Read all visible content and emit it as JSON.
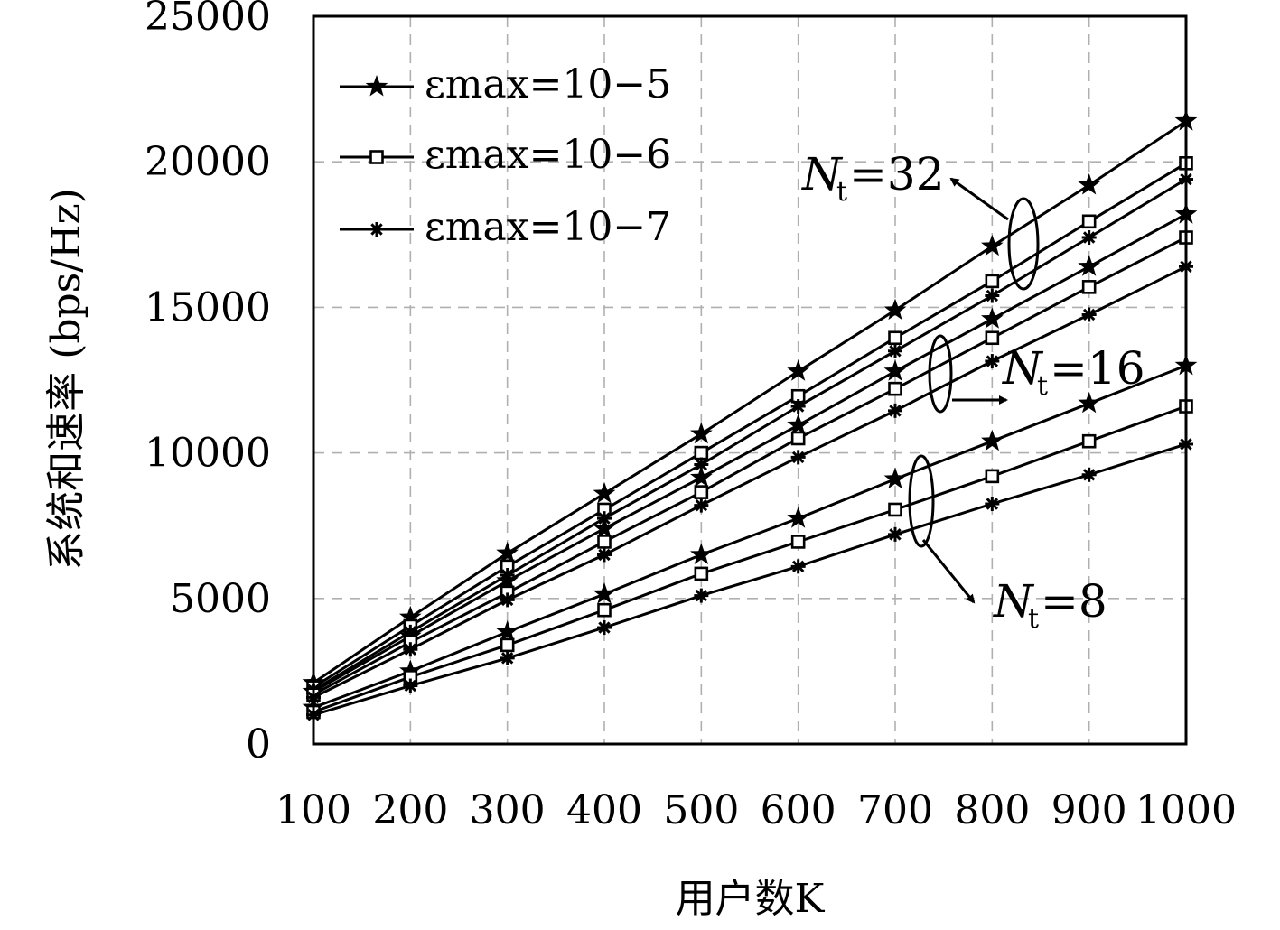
{
  "chart_data": {
    "type": "line",
    "xlabel": "用户数K",
    "ylabel": "系统和速率 (bps/Hz)",
    "x": [
      100,
      200,
      300,
      400,
      500,
      600,
      700,
      800,
      900,
      1000
    ],
    "xlim": [
      100,
      1000
    ],
    "ylim": [
      0,
      25000
    ],
    "xticks": [
      "100",
      "200",
      "300",
      "400",
      "500",
      "600",
      "700",
      "800",
      "900",
      "1000"
    ],
    "yticks": [
      "0",
      "5000",
      "10000",
      "15000",
      "20000",
      "25000"
    ],
    "grid": true,
    "legend_position": "top-left",
    "legend": [
      {
        "marker": "star",
        "label": "εmax=10−5"
      },
      {
        "marker": "square",
        "label": "εmax=10−6"
      },
      {
        "marker": "asterisk",
        "label": "εmax=10−7"
      }
    ],
    "series": [
      {
        "group": "Nt=32",
        "marker": "star",
        "values": [
          2100,
          4350,
          6550,
          8600,
          10650,
          12800,
          14900,
          17100,
          19200,
          21400
        ]
      },
      {
        "group": "Nt=32",
        "marker": "square",
        "values": [
          1950,
          4050,
          6100,
          8050,
          10000,
          11950,
          13950,
          15900,
          17950,
          19950
        ]
      },
      {
        "group": "Nt=32",
        "marker": "asterisk",
        "values": [
          1850,
          3850,
          5800,
          7750,
          9600,
          11600,
          13500,
          15400,
          17400,
          19400
        ]
      },
      {
        "group": "Nt=16",
        "marker": "star",
        "values": [
          1800,
          3700,
          5600,
          7400,
          9150,
          10950,
          12800,
          14600,
          16400,
          18200
        ]
      },
      {
        "group": "Nt=16",
        "marker": "square",
        "values": [
          1700,
          3500,
          5200,
          6950,
          8650,
          10500,
          12200,
          13950,
          15700,
          17400
        ]
      },
      {
        "group": "Nt=16",
        "marker": "asterisk",
        "values": [
          1600,
          3250,
          4950,
          6500,
          8200,
          9850,
          11450,
          13150,
          14750,
          16400
        ]
      },
      {
        "group": "Nt=8",
        "marker": "star",
        "values": [
          1250,
          2500,
          3850,
          5150,
          6500,
          7750,
          9100,
          10400,
          11700,
          13000
        ]
      },
      {
        "group": "Nt=8",
        "marker": "square",
        "values": [
          1100,
          2300,
          3400,
          4600,
          5850,
          6950,
          8050,
          9200,
          10400,
          11600
        ]
      },
      {
        "group": "Nt=8",
        "marker": "asterisk",
        "values": [
          1000,
          2000,
          2950,
          4000,
          5100,
          6100,
          7200,
          8250,
          9250,
          10300
        ]
      }
    ],
    "annotations": [
      {
        "label": "Nt=32",
        "text": "=32"
      },
      {
        "label": "Nt=16",
        "text": "=16"
      },
      {
        "label": "Nt=8",
        "text": "=8"
      }
    ]
  }
}
